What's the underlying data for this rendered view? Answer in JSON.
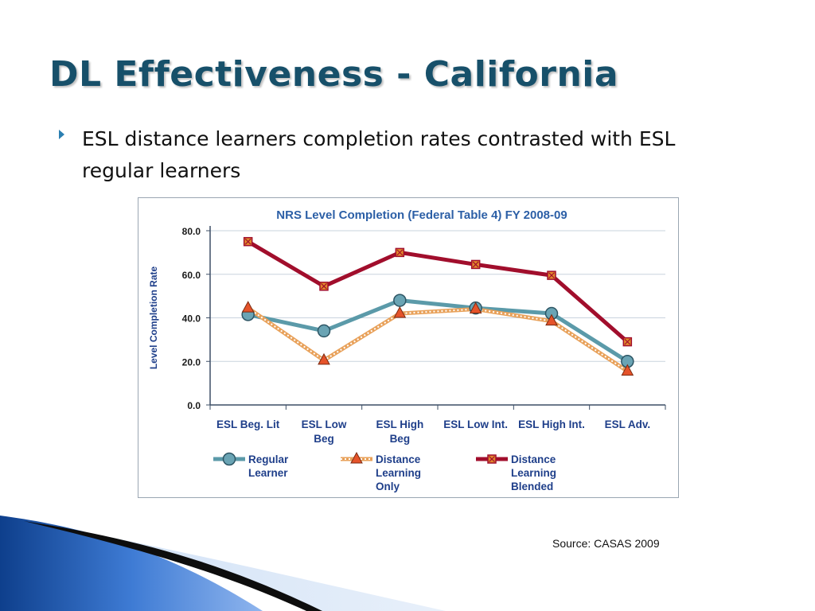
{
  "slide": {
    "title": "DL Effectiveness - California",
    "bullet": "ESL distance learners completion rates contrasted with ESL regular learners",
    "source": "Source: CASAS 2009"
  },
  "colors": {
    "title": "#17506a",
    "bullet_icon": "#2b7fb1",
    "regular": "#5b9aa9",
    "distance_only": "#e2892b",
    "blended": "#a10e2c",
    "chart_title": "#2c5fa6",
    "axis_label": "#1f3f8a"
  },
  "chart_data": {
    "type": "line",
    "title": "NRS Level Completion (Federal Table 4) FY 2008-09",
    "ylabel": "Level Completion Rate",
    "xlabel": "",
    "ylim": [
      0,
      80
    ],
    "yticks": [
      "80.0",
      "60.0",
      "40.0",
      "20.0",
      "0.0"
    ],
    "grid": true,
    "legend_position": "bottom",
    "categories": [
      [
        "ESL Beg. Lit"
      ],
      [
        "ESL Low",
        "Beg"
      ],
      [
        "ESL High",
        "Beg"
      ],
      [
        "ESL Low Int."
      ],
      [
        "ESL High Int."
      ],
      [
        "ESL Adv."
      ]
    ],
    "series": [
      {
        "name": [
          "Regular",
          "Learner"
        ],
        "marker": "circle",
        "values": [
          41.5,
          34.0,
          48.0,
          44.5,
          42.0,
          20.0
        ]
      },
      {
        "name": [
          "Distance",
          "Learning",
          "Only"
        ],
        "marker": "triangle",
        "values": [
          44.5,
          20.5,
          42.0,
          44.0,
          38.5,
          15.5
        ]
      },
      {
        "name": [
          "Distance",
          "Learning",
          "Blended"
        ],
        "marker": "square",
        "values": [
          75.0,
          54.5,
          70.0,
          64.5,
          59.5,
          29.0
        ]
      }
    ]
  }
}
